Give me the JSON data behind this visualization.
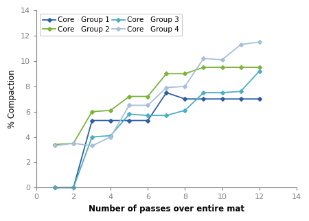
{
  "title": "",
  "xlabel": "Number of passes over entire mat",
  "ylabel": "% Compaction",
  "xlim": [
    0,
    14
  ],
  "ylim": [
    0,
    14
  ],
  "xticks": [
    0,
    2,
    4,
    6,
    8,
    10,
    12,
    14
  ],
  "yticks": [
    0,
    2,
    4,
    6,
    8,
    10,
    12,
    14
  ],
  "series": [
    {
      "label": "Core   Group 1",
      "color": "#2E5FA3",
      "marker": "D",
      "markersize": 3,
      "linewidth": 1.3,
      "x": [
        1,
        2,
        3,
        4,
        5,
        6,
        7,
        8,
        9,
        10,
        11,
        12
      ],
      "y": [
        0.0,
        0.0,
        5.3,
        5.3,
        5.3,
        5.3,
        7.5,
        7.0,
        7.0,
        7.0,
        7.0,
        7.0
      ]
    },
    {
      "label": "Core   Group 2",
      "color": "#7DB33A",
      "marker": "D",
      "markersize": 3,
      "linewidth": 1.3,
      "x": [
        1,
        2,
        3,
        4,
        5,
        6,
        7,
        8,
        9,
        10,
        11,
        12
      ],
      "y": [
        3.4,
        3.5,
        6.0,
        6.1,
        7.2,
        7.2,
        9.0,
        9.0,
        9.5,
        9.5,
        9.5,
        9.5
      ]
    },
    {
      "label": "Core   Group 3",
      "color": "#4BAFC4",
      "marker": "D",
      "markersize": 3,
      "linewidth": 1.3,
      "x": [
        1,
        2,
        3,
        4,
        5,
        6,
        7,
        8,
        9,
        10,
        11,
        12
      ],
      "y": [
        0.0,
        0.0,
        4.0,
        4.1,
        5.8,
        5.7,
        5.7,
        6.1,
        7.5,
        7.5,
        7.6,
        9.2
      ]
    },
    {
      "label": "Core   Group 4",
      "color": "#A8BFD8",
      "marker": "D",
      "markersize": 3,
      "linewidth": 1.3,
      "x": [
        1,
        2,
        3,
        4,
        5,
        6,
        7,
        8,
        9,
        10,
        11,
        12
      ],
      "y": [
        3.3,
        3.5,
        3.3,
        4.0,
        6.5,
        6.5,
        7.9,
        8.0,
        10.2,
        10.1,
        11.3,
        11.5
      ]
    }
  ],
  "legend_loc": "upper left",
  "legend_fontsize": 7.5,
  "axis_fontsize": 8.5,
  "tick_fontsize": 8,
  "axis_color": "#808080",
  "background_color": "#ffffff"
}
